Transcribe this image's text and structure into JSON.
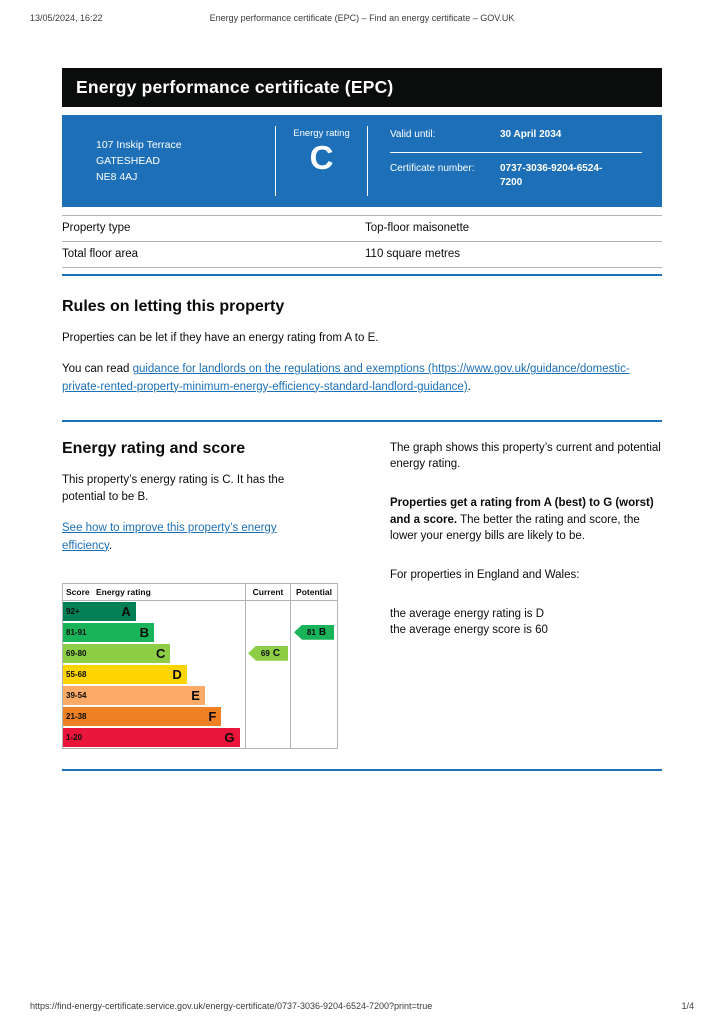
{
  "theme": {
    "accent_blue": "#1d70b8",
    "banner_black": "#0b0c0c",
    "hairline_gray": "#b1b4b6"
  },
  "print_header": {
    "datetime": "13/05/2024, 16:22",
    "title": "Energy performance certificate (EPC) – Find an energy certificate – GOV.UK"
  },
  "banner": {
    "title": "Energy performance certificate (EPC)"
  },
  "summary": {
    "address_lines": [
      "107 Inskip Terrace",
      "GATESHEAD",
      "NE8 4AJ"
    ],
    "rating_label": "Energy rating",
    "rating_letter": "C",
    "valid_until_label": "Valid until:",
    "valid_until_value": "30 April 2034",
    "certificate_number_label": "Certificate number:",
    "certificate_number_value": "0737-3036-9204-6524-7200"
  },
  "property_details": {
    "rows": [
      {
        "label": "Property type",
        "value": "Top-floor maisonette"
      },
      {
        "label": "Total floor area",
        "value": "110 square metres"
      }
    ]
  },
  "rules_section": {
    "heading": "Rules on letting this property",
    "paragraph": "Properties can be let if they have an energy rating from A to E.",
    "read_prefix": "You can read ",
    "link_text": "guidance for landlords on the regulations and exemptions (https://www.gov.uk/guidance/domestic-private-rented-property-minimum-energy-efficiency-standard-landlord-guidance)",
    "read_suffix": "."
  },
  "rating_section": {
    "heading": "Energy rating and score",
    "intro": "This property’s energy rating is C. It has the potential to be B.",
    "improve_link": "See how to improve this property’s energy efficiency",
    "improve_suffix": ".",
    "graph_explain": "The graph shows this property’s current and potential energy rating.",
    "ratings_bold": "Properties get a rating from A (best) to G (worst) and a score.",
    "ratings_rest": " The better the rating and score, the lower your energy bills are likely to be.",
    "average_intro": "For properties in England and Wales:",
    "average_rating": "the average energy rating is D",
    "average_score": "the average energy score is 60"
  },
  "chart_data": {
    "type": "epc-bands",
    "headers": {
      "score": "Score",
      "rating": "Energy rating",
      "current": "Current",
      "potential": "Potential"
    },
    "bands": [
      {
        "score": "92+",
        "letter": "A",
        "color": "#008054",
        "width_pct": 40
      },
      {
        "score": "81-91",
        "letter": "B",
        "color": "#19b459",
        "width_pct": 50
      },
      {
        "score": "69-80",
        "letter": "C",
        "color": "#8dce46",
        "width_pct": 59
      },
      {
        "score": "55-68",
        "letter": "D",
        "color": "#ffd500",
        "width_pct": 68
      },
      {
        "score": "39-54",
        "letter": "E",
        "color": "#fcaa65",
        "width_pct": 78
      },
      {
        "score": "21-38",
        "letter": "F",
        "color": "#ef8023",
        "width_pct": 87
      },
      {
        "score": "1-20",
        "letter": "G",
        "color": "#e9153b",
        "width_pct": 97
      }
    ],
    "current": {
      "score": "69",
      "letter": "C",
      "color": "#8dce46"
    },
    "potential": {
      "score": "81",
      "letter": "B",
      "color": "#19b459"
    }
  },
  "print_footer": {
    "url": "https://find-energy-certificate.service.gov.uk/energy-certificate/0737-3036-9204-6524-7200?print=true",
    "page_indicator": "1/4"
  }
}
